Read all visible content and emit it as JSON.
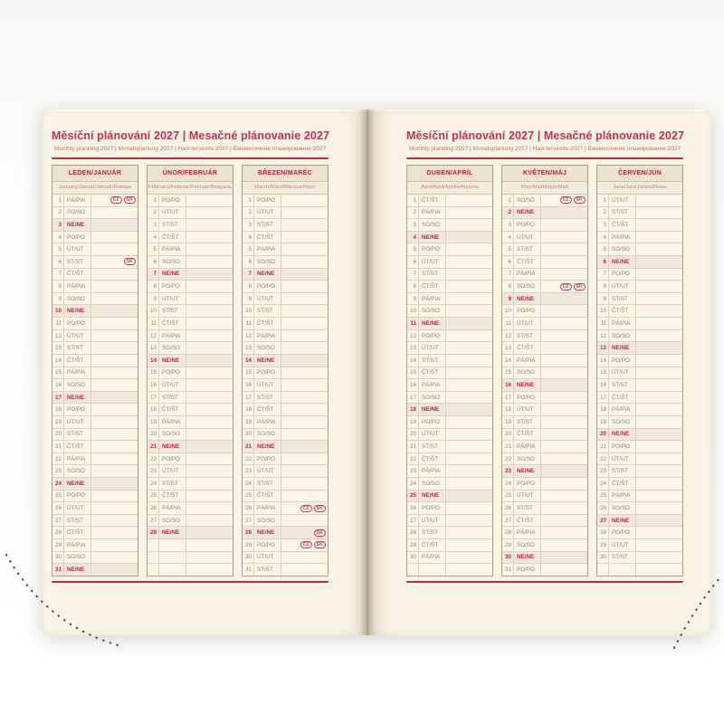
{
  "spread": {
    "title": "Měsíční plánování 2027 | Mesačné plánovanie 2027",
    "subtitle": "Monthly planning 2027 | Monatsplanung 2027 | Havi tervezés 2027 | Ежемесячное планирование 2027"
  },
  "badges": {
    "cz": "CZ",
    "sk": "SK"
  },
  "colors": {
    "page_cream": "#faf4e4",
    "accent_red": "#c22950",
    "month_header_red": "#b12048",
    "sunday_red": "#c01e49",
    "sunday_row_bg": "#f2e7db",
    "header_band_bg": "#ebe2d0",
    "weekday_text": "#8a8271",
    "table_border": "#a89c86"
  },
  "pages": [
    {
      "side": "left",
      "months": [
        {
          "name": "LEDEN/JANUÁR",
          "subtitle": "January/Januar/Január/Январь",
          "trailing_empty_rows": 0,
          "days": [
            {
              "n": 1,
              "w": "PÁ/PIA",
              "b": [
                "cz",
                "sk"
              ]
            },
            {
              "n": 2,
              "w": "SO/SO"
            },
            {
              "n": 3,
              "w": "NE/NE"
            },
            {
              "n": 4,
              "w": "PO/PO"
            },
            {
              "n": 5,
              "w": "ÚT/UT"
            },
            {
              "n": 6,
              "w": "ST/ST",
              "b": [
                "sk"
              ]
            },
            {
              "n": 7,
              "w": "ČT/ŠT"
            },
            {
              "n": 8,
              "w": "PÁ/PIA"
            },
            {
              "n": 9,
              "w": "SO/SO"
            },
            {
              "n": 10,
              "w": "NE/NE"
            },
            {
              "n": 11,
              "w": "PO/PO"
            },
            {
              "n": 12,
              "w": "ÚT/UT"
            },
            {
              "n": 13,
              "w": "ST/ST"
            },
            {
              "n": 14,
              "w": "ČT/ŠT"
            },
            {
              "n": 15,
              "w": "PÁ/PIA"
            },
            {
              "n": 16,
              "w": "SO/SO"
            },
            {
              "n": 17,
              "w": "NE/NE"
            },
            {
              "n": 18,
              "w": "PO/PO"
            },
            {
              "n": 19,
              "w": "ÚT/UT"
            },
            {
              "n": 20,
              "w": "ST/ST"
            },
            {
              "n": 21,
              "w": "ČT/ŠT"
            },
            {
              "n": 22,
              "w": "PÁ/PIA"
            },
            {
              "n": 23,
              "w": "SO/SO"
            },
            {
              "n": 24,
              "w": "NE/NE"
            },
            {
              "n": 25,
              "w": "PO/PO"
            },
            {
              "n": 26,
              "w": "ÚT/UT"
            },
            {
              "n": 27,
              "w": "ST/ST"
            },
            {
              "n": 28,
              "w": "ČT/ŠT"
            },
            {
              "n": 29,
              "w": "PÁ/PIA"
            },
            {
              "n": 30,
              "w": "SO/SO"
            },
            {
              "n": 31,
              "w": "NE/NE"
            }
          ]
        },
        {
          "name": "ÚNOR/FEBRUÁR",
          "subtitle": "February/Februar/Február/Февраль",
          "trailing_empty_rows": 3,
          "days": [
            {
              "n": 1,
              "w": "PO/PO"
            },
            {
              "n": 2,
              "w": "ÚT/UT"
            },
            {
              "n": 3,
              "w": "ST/ST"
            },
            {
              "n": 4,
              "w": "ČT/ŠT"
            },
            {
              "n": 5,
              "w": "PÁ/PIA"
            },
            {
              "n": 6,
              "w": "SO/SO"
            },
            {
              "n": 7,
              "w": "NE/NE"
            },
            {
              "n": 8,
              "w": "PO/PO"
            },
            {
              "n": 9,
              "w": "ÚT/UT"
            },
            {
              "n": 10,
              "w": "ST/ST"
            },
            {
              "n": 11,
              "w": "ČT/ŠT"
            },
            {
              "n": 12,
              "w": "PÁ/PIA"
            },
            {
              "n": 13,
              "w": "SO/SO"
            },
            {
              "n": 14,
              "w": "NE/NE"
            },
            {
              "n": 15,
              "w": "PO/PO"
            },
            {
              "n": 16,
              "w": "ÚT/UT"
            },
            {
              "n": 17,
              "w": "ST/ST"
            },
            {
              "n": 18,
              "w": "ČT/ŠT"
            },
            {
              "n": 19,
              "w": "PÁ/PIA"
            },
            {
              "n": 20,
              "w": "SO/SO"
            },
            {
              "n": 21,
              "w": "NE/NE"
            },
            {
              "n": 22,
              "w": "PO/PO"
            },
            {
              "n": 23,
              "w": "ÚT/UT"
            },
            {
              "n": 24,
              "w": "ST/ST"
            },
            {
              "n": 25,
              "w": "ČT/ŠT"
            },
            {
              "n": 26,
              "w": "PÁ/PIA"
            },
            {
              "n": 27,
              "w": "SO/SO"
            },
            {
              "n": 28,
              "w": "NE/NE"
            }
          ]
        },
        {
          "name": "BŘEZEN/MAREC",
          "subtitle": "March/März/Március/Март",
          "trailing_empty_rows": 0,
          "days": [
            {
              "n": 1,
              "w": "PO/PO"
            },
            {
              "n": 2,
              "w": "ÚT/UT"
            },
            {
              "n": 3,
              "w": "ST/ST"
            },
            {
              "n": 4,
              "w": "ČT/ŠT"
            },
            {
              "n": 5,
              "w": "PÁ/PIA"
            },
            {
              "n": 6,
              "w": "SO/SO"
            },
            {
              "n": 7,
              "w": "NE/NE"
            },
            {
              "n": 8,
              "w": "PO/PO"
            },
            {
              "n": 9,
              "w": "ÚT/UT"
            },
            {
              "n": 10,
              "w": "ST/ST"
            },
            {
              "n": 11,
              "w": "ČT/ŠT"
            },
            {
              "n": 12,
              "w": "PÁ/PIA"
            },
            {
              "n": 13,
              "w": "SO/SO"
            },
            {
              "n": 14,
              "w": "NE/NE"
            },
            {
              "n": 15,
              "w": "PO/PO"
            },
            {
              "n": 16,
              "w": "ÚT/UT"
            },
            {
              "n": 17,
              "w": "ST/ST"
            },
            {
              "n": 18,
              "w": "ČT/ŠT"
            },
            {
              "n": 19,
              "w": "PÁ/PIA"
            },
            {
              "n": 20,
              "w": "SO/SO"
            },
            {
              "n": 21,
              "w": "NE/NE"
            },
            {
              "n": 22,
              "w": "PO/PO"
            },
            {
              "n": 23,
              "w": "ÚT/UT"
            },
            {
              "n": 24,
              "w": "ST/ST"
            },
            {
              "n": 25,
              "w": "ČT/ŠT"
            },
            {
              "n": 26,
              "w": "PÁ/PIA",
              "b": [
                "cz",
                "sk"
              ]
            },
            {
              "n": 27,
              "w": "SO/SO"
            },
            {
              "n": 28,
              "w": "NE/NE",
              "b": [
                "sk"
              ]
            },
            {
              "n": 29,
              "w": "PO/PO",
              "b": [
                "cz",
                "sk"
              ]
            },
            {
              "n": 30,
              "w": "ÚT/UT"
            },
            {
              "n": 31,
              "w": "ST/ST"
            }
          ]
        }
      ]
    },
    {
      "side": "right",
      "months": [
        {
          "name": "DUBEN/APRÍL",
          "subtitle": "April/April/Április/Апрель",
          "trailing_empty_rows": 1,
          "days": [
            {
              "n": 1,
              "w": "ČT/ŠT"
            },
            {
              "n": 2,
              "w": "PÁ/PIA"
            },
            {
              "n": 3,
              "w": "SO/SO"
            },
            {
              "n": 4,
              "w": "NE/NE"
            },
            {
              "n": 5,
              "w": "PO/PO"
            },
            {
              "n": 6,
              "w": "ÚT/UT"
            },
            {
              "n": 7,
              "w": "ST/ST"
            },
            {
              "n": 8,
              "w": "ČT/ŠT"
            },
            {
              "n": 9,
              "w": "PÁ/PIA"
            },
            {
              "n": 10,
              "w": "SO/SO"
            },
            {
              "n": 11,
              "w": "NE/NE"
            },
            {
              "n": 12,
              "w": "PO/PO"
            },
            {
              "n": 13,
              "w": "ÚT/UT"
            },
            {
              "n": 14,
              "w": "ST/ST"
            },
            {
              "n": 15,
              "w": "ČT/ŠT"
            },
            {
              "n": 16,
              "w": "PÁ/PIA"
            },
            {
              "n": 17,
              "w": "SO/SO"
            },
            {
              "n": 18,
              "w": "NE/NE"
            },
            {
              "n": 19,
              "w": "PO/PO"
            },
            {
              "n": 20,
              "w": "ÚT/UT"
            },
            {
              "n": 21,
              "w": "ST/ST"
            },
            {
              "n": 22,
              "w": "ČT/ŠT"
            },
            {
              "n": 23,
              "w": "PÁ/PIA"
            },
            {
              "n": 24,
              "w": "SO/SO"
            },
            {
              "n": 25,
              "w": "NE/NE"
            },
            {
              "n": 26,
              "w": "PO/PO"
            },
            {
              "n": 27,
              "w": "ÚT/UT"
            },
            {
              "n": 28,
              "w": "ST/ST"
            },
            {
              "n": 29,
              "w": "ČT/ŠT"
            },
            {
              "n": 30,
              "w": "PÁ/PIA"
            }
          ]
        },
        {
          "name": "KVĚTEN/MÁJ",
          "subtitle": "May/Mai/Május/Май",
          "trailing_empty_rows": 0,
          "days": [
            {
              "n": 1,
              "w": "SO/SO",
              "b": [
                "cz",
                "sk"
              ]
            },
            {
              "n": 2,
              "w": "NE/NE"
            },
            {
              "n": 3,
              "w": "PO/PO"
            },
            {
              "n": 4,
              "w": "ÚT/UT"
            },
            {
              "n": 5,
              "w": "ST/ST"
            },
            {
              "n": 6,
              "w": "ČT/ŠT"
            },
            {
              "n": 7,
              "w": "PÁ/PIA"
            },
            {
              "n": 8,
              "w": "SO/SO",
              "b": [
                "cz",
                "sk"
              ]
            },
            {
              "n": 9,
              "w": "NE/NE"
            },
            {
              "n": 10,
              "w": "PO/PO"
            },
            {
              "n": 11,
              "w": "ÚT/UT"
            },
            {
              "n": 12,
              "w": "ST/ST"
            },
            {
              "n": 13,
              "w": "ČT/ŠT"
            },
            {
              "n": 14,
              "w": "PÁ/PIA"
            },
            {
              "n": 15,
              "w": "SO/SO"
            },
            {
              "n": 16,
              "w": "NE/NE"
            },
            {
              "n": 17,
              "w": "PO/PO"
            },
            {
              "n": 18,
              "w": "ÚT/UT"
            },
            {
              "n": 19,
              "w": "ST/ST"
            },
            {
              "n": 20,
              "w": "ČT/ŠT"
            },
            {
              "n": 21,
              "w": "PÁ/PIA"
            },
            {
              "n": 22,
              "w": "SO/SO"
            },
            {
              "n": 23,
              "w": "NE/NE"
            },
            {
              "n": 24,
              "w": "PO/PO"
            },
            {
              "n": 25,
              "w": "ÚT/UT"
            },
            {
              "n": 26,
              "w": "ST/ST"
            },
            {
              "n": 27,
              "w": "ČT/ŠT"
            },
            {
              "n": 28,
              "w": "PÁ/PIA"
            },
            {
              "n": 29,
              "w": "SO/SO"
            },
            {
              "n": 30,
              "w": "NE/NE"
            },
            {
              "n": 31,
              "w": "PO/PO"
            }
          ]
        },
        {
          "name": "ČERVEN/JÚN",
          "subtitle": "June/Juni/Június/Июнь",
          "trailing_empty_rows": 1,
          "days": [
            {
              "n": 1,
              "w": "ÚT/UT"
            },
            {
              "n": 2,
              "w": "ST/ST"
            },
            {
              "n": 3,
              "w": "ČT/ŠT"
            },
            {
              "n": 4,
              "w": "PÁ/PIA"
            },
            {
              "n": 5,
              "w": "SO/SO"
            },
            {
              "n": 6,
              "w": "NE/NE"
            },
            {
              "n": 7,
              "w": "PO/PO"
            },
            {
              "n": 8,
              "w": "ÚT/UT"
            },
            {
              "n": 9,
              "w": "ST/ST"
            },
            {
              "n": 10,
              "w": "ČT/ŠT"
            },
            {
              "n": 11,
              "w": "PÁ/PIA"
            },
            {
              "n": 12,
              "w": "SO/SO"
            },
            {
              "n": 13,
              "w": "NE/NE"
            },
            {
              "n": 14,
              "w": "PO/PO"
            },
            {
              "n": 15,
              "w": "ÚT/UT"
            },
            {
              "n": 16,
              "w": "ST/ST"
            },
            {
              "n": 17,
              "w": "ČT/ŠT"
            },
            {
              "n": 18,
              "w": "PÁ/PIA"
            },
            {
              "n": 19,
              "w": "SO/SO"
            },
            {
              "n": 20,
              "w": "NE/NE"
            },
            {
              "n": 21,
              "w": "PO/PO"
            },
            {
              "n": 22,
              "w": "ÚT/UT"
            },
            {
              "n": 23,
              "w": "ST/ST"
            },
            {
              "n": 24,
              "w": "ČT/ŠT"
            },
            {
              "n": 25,
              "w": "PÁ/PIA"
            },
            {
              "n": 26,
              "w": "SO/SO"
            },
            {
              "n": 27,
              "w": "NE/NE"
            },
            {
              "n": 28,
              "w": "PO/PO"
            },
            {
              "n": 29,
              "w": "ÚT/UT"
            },
            {
              "n": 30,
              "w": "ST/ST"
            }
          ]
        }
      ]
    }
  ]
}
